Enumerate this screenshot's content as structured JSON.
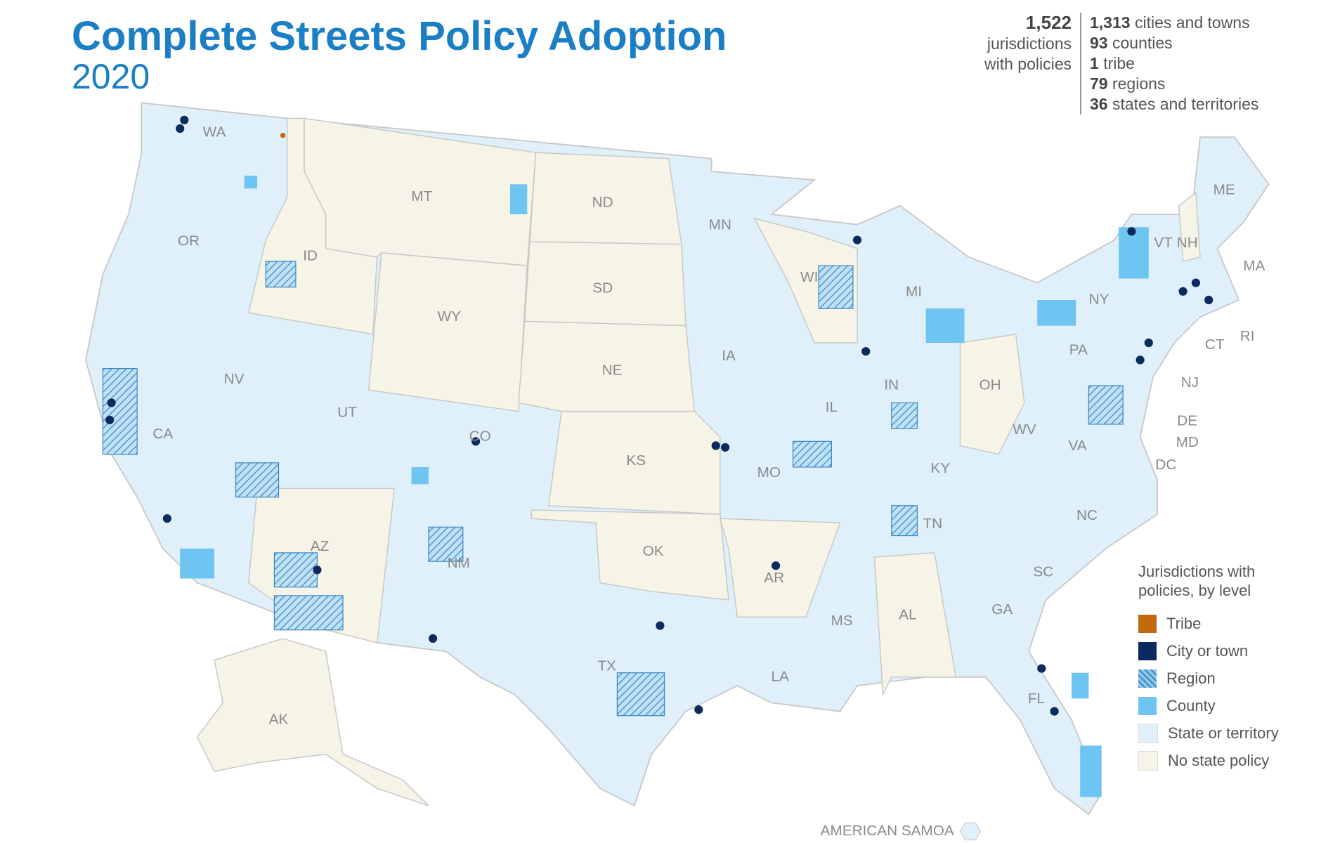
{
  "header": {
    "title": "Complete Streets Policy Adoption",
    "subtitle": "2020"
  },
  "summary": {
    "total": "1,522",
    "total_label": "jurisdictions with policies",
    "breakdown": [
      {
        "count": "1,313",
        "label": "cities and towns"
      },
      {
        "count": "93",
        "label": "counties"
      },
      {
        "count": "1",
        "label": "tribe"
      },
      {
        "count": "79",
        "label": "regions"
      },
      {
        "count": "36",
        "label": "states and territories"
      }
    ]
  },
  "legend": {
    "title": "Jurisdictions with policies, by level",
    "items": [
      {
        "label": "Tribe",
        "color": "#c0690f"
      },
      {
        "label": "City or town",
        "color": "#0d2a5e"
      },
      {
        "label": "Region",
        "color": "#8fc8ea",
        "pattern": "hatch"
      },
      {
        "label": "County",
        "color": "#6fc5f2"
      },
      {
        "label": "State or territory",
        "color": "#dff0fa"
      },
      {
        "label": "No state policy",
        "color": "#f6f4e6"
      }
    ]
  },
  "map": {
    "states": [
      {
        "label": "WA",
        "policy": true
      },
      {
        "label": "OR",
        "policy": true
      },
      {
        "label": "CA",
        "policy": true
      },
      {
        "label": "NV",
        "policy": true
      },
      {
        "label": "ID",
        "policy": false
      },
      {
        "label": "MT",
        "policy": false
      },
      {
        "label": "WY",
        "policy": false
      },
      {
        "label": "UT",
        "policy": true
      },
      {
        "label": "AZ",
        "policy": false
      },
      {
        "label": "CO",
        "policy": true
      },
      {
        "label": "NM",
        "policy": true
      },
      {
        "label": "ND",
        "policy": false
      },
      {
        "label": "SD",
        "policy": false
      },
      {
        "label": "NE",
        "policy": false
      },
      {
        "label": "KS",
        "policy": false
      },
      {
        "label": "OK",
        "policy": false
      },
      {
        "label": "TX",
        "policy": true
      },
      {
        "label": "MN",
        "policy": true
      },
      {
        "label": "IA",
        "policy": true
      },
      {
        "label": "MO",
        "policy": true
      },
      {
        "label": "AR",
        "policy": false
      },
      {
        "label": "LA",
        "policy": true
      },
      {
        "label": "WI",
        "policy": false
      },
      {
        "label": "IL",
        "policy": true
      },
      {
        "label": "MS",
        "policy": true
      },
      {
        "label": "MI",
        "policy": true
      },
      {
        "label": "IN",
        "policy": true
      },
      {
        "label": "OH",
        "policy": false
      },
      {
        "label": "KY",
        "policy": true
      },
      {
        "label": "TN",
        "policy": true
      },
      {
        "label": "AL",
        "policy": false
      },
      {
        "label": "GA",
        "policy": true
      },
      {
        "label": "FL",
        "policy": true
      },
      {
        "label": "SC",
        "policy": true
      },
      {
        "label": "NC",
        "policy": true
      },
      {
        "label": "VA",
        "policy": true
      },
      {
        "label": "WV",
        "policy": true
      },
      {
        "label": "PA",
        "policy": true
      },
      {
        "label": "NY",
        "policy": true
      },
      {
        "label": "VT",
        "policy": true
      },
      {
        "label": "NH",
        "policy": false
      },
      {
        "label": "ME",
        "policy": true
      },
      {
        "label": "MA",
        "policy": true
      },
      {
        "label": "RI",
        "policy": true
      },
      {
        "label": "CT",
        "policy": true
      },
      {
        "label": "NJ",
        "policy": true
      },
      {
        "label": "DE",
        "policy": true
      },
      {
        "label": "MD",
        "policy": true
      },
      {
        "label": "DC",
        "policy": true
      },
      {
        "label": "AK",
        "policy": false
      }
    ],
    "territories": [
      "AMERICAN SAMOA"
    ]
  }
}
